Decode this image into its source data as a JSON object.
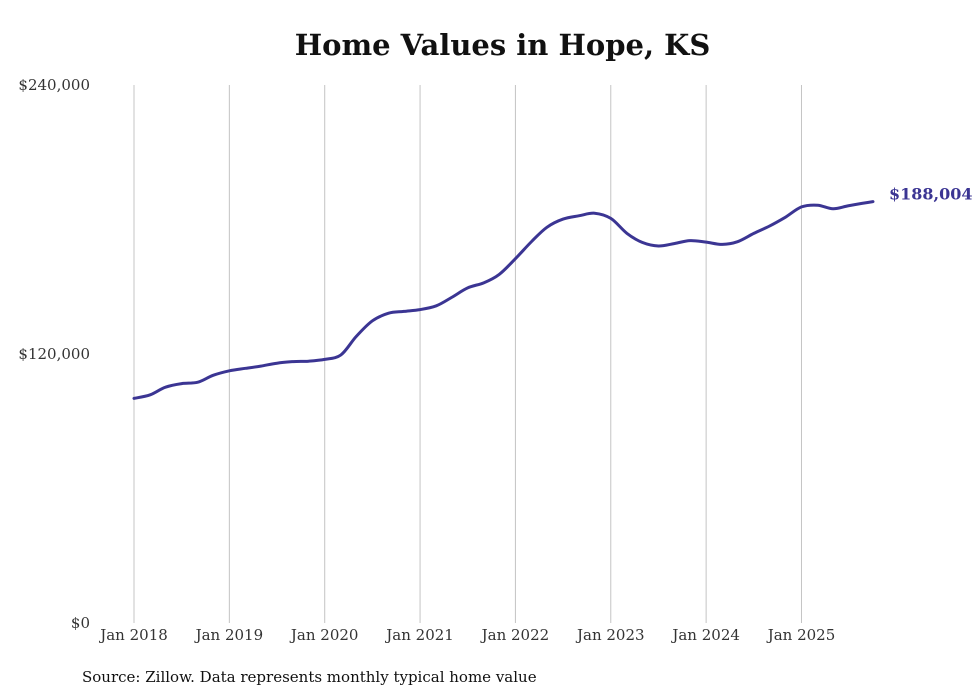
{
  "chart_data": {
    "type": "line",
    "title": "Home Values in Hope, KS",
    "xlabel": "",
    "ylabel": "",
    "ylim": [
      0,
      240000
    ],
    "xlim": [
      2018.0,
      2025.75
    ],
    "y_ticks": [
      {
        "value": 0,
        "label": "$0"
      },
      {
        "value": 120000,
        "label": "$120,000"
      },
      {
        "value": 240000,
        "label": "$240,000"
      }
    ],
    "x_ticks": [
      {
        "value": 2018,
        "label": "Jan 2018"
      },
      {
        "value": 2019,
        "label": "Jan 2019"
      },
      {
        "value": 2020,
        "label": "Jan 2020"
      },
      {
        "value": 2021,
        "label": "Jan 2021"
      },
      {
        "value": 2022,
        "label": "Jan 2022"
      },
      {
        "value": 2023,
        "label": "Jan 2023"
      },
      {
        "value": 2024,
        "label": "Jan 2024"
      },
      {
        "value": 2025,
        "label": "Jan 2025"
      }
    ],
    "grid": "vertical",
    "series": [
      {
        "name": "Typical home value",
        "color": "#3b3593",
        "points": [
          [
            2018.0,
            100200
          ],
          [
            2018.17,
            101800
          ],
          [
            2018.33,
            105200
          ],
          [
            2018.5,
            106800
          ],
          [
            2018.67,
            107400
          ],
          [
            2018.83,
            110500
          ],
          [
            2019.0,
            112500
          ],
          [
            2019.17,
            113600
          ],
          [
            2019.33,
            114600
          ],
          [
            2019.5,
            115900
          ],
          [
            2019.67,
            116600
          ],
          [
            2019.83,
            116800
          ],
          [
            2020.0,
            117600
          ],
          [
            2020.17,
            119600
          ],
          [
            2020.33,
            127800
          ],
          [
            2020.5,
            134800
          ],
          [
            2020.67,
            138200
          ],
          [
            2020.83,
            139000
          ],
          [
            2021.0,
            139800
          ],
          [
            2021.17,
            141500
          ],
          [
            2021.33,
            145200
          ],
          [
            2021.5,
            149500
          ],
          [
            2021.67,
            151800
          ],
          [
            2021.83,
            155500
          ],
          [
            2022.0,
            162500
          ],
          [
            2022.17,
            170200
          ],
          [
            2022.33,
            176500
          ],
          [
            2022.5,
            180200
          ],
          [
            2022.67,
            181700
          ],
          [
            2022.83,
            182800
          ],
          [
            2023.0,
            180500
          ],
          [
            2023.17,
            173800
          ],
          [
            2023.33,
            169800
          ],
          [
            2023.5,
            168200
          ],
          [
            2023.67,
            169300
          ],
          [
            2023.83,
            170600
          ],
          [
            2024.0,
            169900
          ],
          [
            2024.17,
            168900
          ],
          [
            2024.33,
            170100
          ],
          [
            2024.5,
            173800
          ],
          [
            2024.67,
            177200
          ],
          [
            2024.83,
            181000
          ],
          [
            2025.0,
            185600
          ],
          [
            2025.17,
            186400
          ],
          [
            2025.33,
            184800
          ],
          [
            2025.5,
            186200
          ],
          [
            2025.75,
            188004
          ]
        ]
      }
    ],
    "end_label": "$188,004"
  },
  "source_note": "Source: Zillow. Data represents monthly typical home value"
}
